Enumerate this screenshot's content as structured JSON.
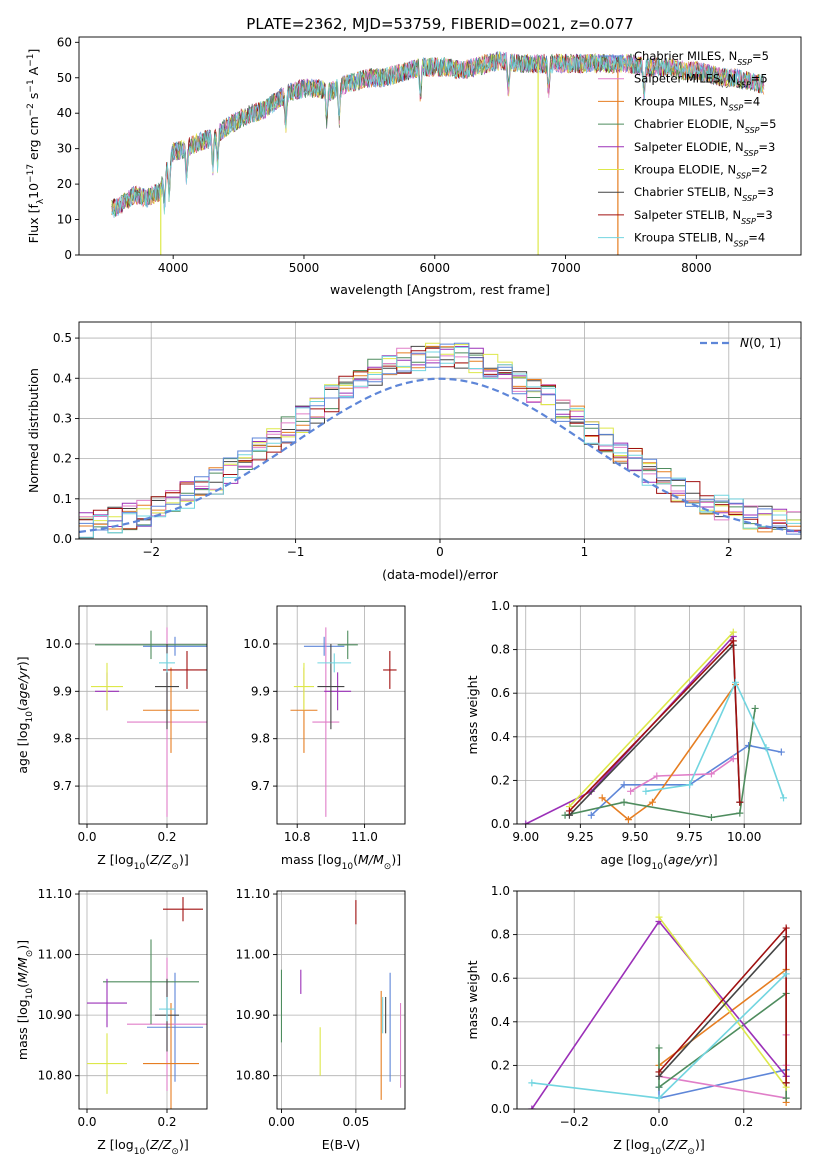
{
  "figure_title": "PLATE=2362, MJD=53759, FIBERID=0021, z=0.077",
  "series_colors": [
    "#5e86d8",
    "#e07ec8",
    "#e67e22",
    "#4e8c5e",
    "#9b30b8",
    "#dde84a",
    "#444444",
    "#a01010",
    "#72d5e0"
  ],
  "legend_entries": [
    {
      "name": "Chabrier MILES",
      "nssp": "5"
    },
    {
      "name": "Salpeter MILES",
      "nssp": "5"
    },
    {
      "name": "Kroupa MILES",
      "nssp": "4"
    },
    {
      "name": "Chabrier ELODIE",
      "nssp": "5"
    },
    {
      "name": "Salpeter ELODIE",
      "nssp": "3"
    },
    {
      "name": "Kroupa ELODIE",
      "nssp": "2"
    },
    {
      "name": "Chabrier STELIB",
      "nssp": "3"
    },
    {
      "name": "Salpeter STELIB",
      "nssp": "3"
    },
    {
      "name": "Kroupa STELIB",
      "nssp": "4"
    }
  ],
  "chart_data": [
    {
      "id": "spectrum",
      "type": "line",
      "xlabel": "wavelength [Angstrom, rest frame]",
      "ylabel": "Flux [f_λ 10^-17 erg cm^-2 s^-1 A^-1]",
      "xlim": [
        3280,
        8800
      ],
      "ylim": [
        0,
        61.5
      ],
      "xticks": [
        4000,
        5000,
        6000,
        7000,
        8000
      ],
      "yticks": [
        0,
        10,
        20,
        30,
        40,
        50,
        60
      ],
      "grid": false,
      "legend": "right",
      "continuum": {
        "x": [
          3530,
          3600,
          3700,
          3800,
          3900,
          3960,
          4000,
          4100,
          4200,
          4300,
          4400,
          4500,
          4600,
          4700,
          4800,
          4900,
          5000,
          5100,
          5200,
          5300,
          5400,
          5500,
          5600,
          5700,
          5800,
          5900,
          6000,
          6100,
          6200,
          6300,
          6400,
          6500,
          6600,
          6700,
          6800,
          6900,
          7000,
          7100,
          7200,
          7300,
          7400,
          7500,
          7600,
          7700,
          7800,
          7900,
          8000,
          8100,
          8200,
          8300,
          8400,
          8520
        ],
        "y": [
          13,
          14,
          17,
          16,
          18,
          25,
          29,
          30,
          32,
          33,
          36,
          38,
          40,
          41,
          44,
          46,
          47,
          47,
          46,
          48,
          49,
          50,
          50,
          51,
          52,
          53,
          53,
          53,
          52,
          53,
          54,
          55,
          54,
          54,
          54,
          54,
          54,
          54,
          54,
          54,
          54,
          54,
          53,
          53,
          53,
          52,
          52,
          51,
          50,
          50,
          49,
          48
        ]
      },
      "masked_lines": [
        {
          "x": 3905,
          "color_index": 5
        },
        {
          "x": 6790,
          "color_index": 5
        },
        {
          "x": 7400,
          "color_index": 2
        }
      ]
    },
    {
      "id": "residuals",
      "type": "histogram",
      "xlabel": "(data-model)/error",
      "ylabel": "Normed distribution",
      "xlim": [
        -2.5,
        2.5
      ],
      "ylim": [
        0,
        0.54
      ],
      "xticks": [
        -2,
        -1,
        0,
        1,
        2
      ],
      "yticks": [
        0.0,
        0.1,
        0.2,
        0.3,
        0.4,
        0.5
      ],
      "bin_width": 0.1,
      "bin_start": -2.5,
      "grid": true,
      "legend": "top-right",
      "reference_label": "N(0,1)"
    },
    {
      "id": "age_vs_Z",
      "type": "errorbar",
      "xlabel": "Z [log10(Z/Z⊙)]",
      "ylabel": "age  [log10(age/yr)]",
      "xlim": [
        -0.02,
        0.3
      ],
      "ylim": [
        9.62,
        10.08
      ],
      "xticks": [
        0.0,
        0.2
      ],
      "yticks": [
        9.7,
        9.8,
        9.9,
        10.0
      ],
      "grid": true,
      "points": [
        {
          "c": 0,
          "x": 0.22,
          "xe": 0.08,
          "y": 9.995,
          "ye": 0.02
        },
        {
          "c": 1,
          "x": 0.2,
          "xe": 0.1,
          "y": 9.835,
          "ye": 0.2
        },
        {
          "c": 2,
          "x": 0.21,
          "xe": 0.07,
          "y": 9.86,
          "ye": 0.09
        },
        {
          "c": 3,
          "x": 0.16,
          "xe": 0.14,
          "y": 9.998,
          "ye": 0.03
        },
        {
          "c": 4,
          "x": 0.05,
          "xe": 0.03,
          "y": 9.9,
          "ye": 0.04
        },
        {
          "c": 5,
          "x": 0.05,
          "xe": 0.04,
          "y": 9.91,
          "ye": 0.05
        },
        {
          "c": 6,
          "x": 0.2,
          "xe": 0.03,
          "y": 9.91,
          "ye": 0.09
        },
        {
          "c": 7,
          "x": 0.25,
          "xe": 0.06,
          "y": 9.945,
          "ye": 0.04
        },
        {
          "c": 8,
          "x": 0.2,
          "xe": 0.02,
          "y": 9.96,
          "ye": 0.02
        }
      ]
    },
    {
      "id": "age_vs_mass",
      "type": "errorbar",
      "xlabel": "mass [log10(M/M⊙)]",
      "ylabel": "",
      "xlim": [
        10.74,
        11.12
      ],
      "ylim": [
        9.62,
        10.08
      ],
      "xticks": [
        10.8,
        11.0
      ],
      "yticks": [
        9.7,
        9.8,
        9.9,
        10.0
      ],
      "grid": true,
      "points": [
        {
          "c": 0,
          "x": 10.88,
          "xe": 0.06,
          "y": 9.995,
          "ye": 0.02
        },
        {
          "c": 1,
          "x": 10.885,
          "xe": 0.04,
          "y": 9.835,
          "ye": 0.2
        },
        {
          "c": 2,
          "x": 10.82,
          "xe": 0.04,
          "y": 9.86,
          "ye": 0.09
        },
        {
          "c": 3,
          "x": 10.95,
          "xe": 0.03,
          "y": 9.998,
          "ye": 0.03
        },
        {
          "c": 4,
          "x": 10.92,
          "xe": 0.04,
          "y": 9.9,
          "ye": 0.04
        },
        {
          "c": 5,
          "x": 10.82,
          "xe": 0.03,
          "y": 9.91,
          "ye": 0.05
        },
        {
          "c": 6,
          "x": 10.9,
          "xe": 0.04,
          "y": 9.91,
          "ye": 0.09
        },
        {
          "c": 7,
          "x": 11.075,
          "xe": 0.02,
          "y": 9.945,
          "ye": 0.04
        },
        {
          "c": 8,
          "x": 10.91,
          "xe": 0.05,
          "y": 9.96,
          "ye": 0.02
        }
      ]
    },
    {
      "id": "weight_vs_age",
      "type": "line",
      "xlabel": "age  [log10(age/yr)]",
      "ylabel": "mass weight",
      "xlim": [
        8.96,
        10.26
      ],
      "ylim": [
        0,
        1.0
      ],
      "xticks": [
        9.0,
        9.25,
        9.5,
        9.75,
        10.0
      ],
      "yticks": [
        0.0,
        0.2,
        0.4,
        0.6,
        0.8,
        1.0
      ],
      "grid": true,
      "series": [
        {
          "c": 0,
          "x": [
            9.3,
            9.45,
            9.75,
            10.02,
            10.17
          ],
          "y": [
            0.04,
            0.18,
            0.18,
            0.36,
            0.33
          ]
        },
        {
          "c": 1,
          "x": [
            9.48,
            9.6,
            9.85,
            9.95,
            9.95
          ],
          "y": [
            0.15,
            0.22,
            0.23,
            0.3,
            0.3
          ]
        },
        {
          "c": 2,
          "x": [
            9.35,
            9.47,
            9.58,
            9.96
          ],
          "y": [
            0.12,
            0.02,
            0.1,
            0.64
          ]
        },
        {
          "c": 3,
          "x": [
            9.18,
            9.45,
            9.85,
            9.98,
            10.05
          ],
          "y": [
            0.04,
            0.1,
            0.03,
            0.05,
            0.53
          ]
        },
        {
          "c": 4,
          "x": [
            9.0,
            9.3,
            9.95
          ],
          "y": [
            0.0,
            0.15,
            0.86
          ]
        },
        {
          "c": 5,
          "x": [
            9.2,
            9.95
          ],
          "y": [
            0.08,
            0.88
          ]
        },
        {
          "c": 6,
          "x": [
            9.2,
            9.95,
            9.98
          ],
          "y": [
            0.04,
            0.82,
            0.1
          ]
        },
        {
          "c": 7,
          "x": [
            9.2,
            9.95,
            9.98
          ],
          "y": [
            0.06,
            0.84,
            0.1
          ]
        },
        {
          "c": 8,
          "x": [
            9.55,
            9.75,
            9.96,
            10.1,
            10.18
          ],
          "y": [
            0.15,
            0.18,
            0.65,
            0.35,
            0.12
          ]
        }
      ]
    },
    {
      "id": "mass_vs_Z",
      "type": "errorbar",
      "xlabel": "Z [log10(Z/Z⊙)]",
      "ylabel": "mass [log10(M/M⊙)]",
      "xlim": [
        -0.02,
        0.3
      ],
      "ylim": [
        10.745,
        11.105
      ],
      "xticks": [
        0.0,
        0.2
      ],
      "yticks": [
        10.8,
        10.9,
        11.0,
        11.1
      ],
      "grid": true,
      "points": [
        {
          "c": 0,
          "x": 0.22,
          "xe": 0.07,
          "y": 10.88,
          "ye": 0.09
        },
        {
          "c": 1,
          "x": 0.2,
          "xe": 0.1,
          "y": 10.885,
          "ye": 0.11
        },
        {
          "c": 2,
          "x": 0.21,
          "xe": 0.07,
          "y": 10.82,
          "ye": 0.1
        },
        {
          "c": 3,
          "x": 0.16,
          "xe": 0.12,
          "y": 10.955,
          "ye": 0.07
        },
        {
          "c": 4,
          "x": 0.05,
          "xe": 0.05,
          "y": 10.92,
          "ye": 0.04
        },
        {
          "c": 5,
          "x": 0.05,
          "xe": 0.05,
          "y": 10.82,
          "ye": 0.05
        },
        {
          "c": 6,
          "x": 0.2,
          "xe": 0.03,
          "y": 10.9,
          "ye": 0.06
        },
        {
          "c": 7,
          "x": 0.24,
          "xe": 0.05,
          "y": 11.075,
          "ye": 0.02
        },
        {
          "c": 8,
          "x": 0.2,
          "xe": 0.02,
          "y": 10.91,
          "ye": 0.02
        }
      ]
    },
    {
      "id": "mass_vs_EBV",
      "type": "errorbar",
      "xlabel": "E(B-V)",
      "ylabel": "",
      "xlim": [
        -0.003,
        0.083
      ],
      "ylim": [
        10.745,
        11.105
      ],
      "xticks": [
        0.0,
        0.05
      ],
      "yticks": [
        10.8,
        10.9,
        11.0,
        11.1
      ],
      "grid": true,
      "points": [
        {
          "c": 0,
          "x": 0.073,
          "xe": 0,
          "y": 10.88,
          "ye": 0.09
        },
        {
          "c": 1,
          "x": 0.08,
          "xe": 0,
          "y": 10.85,
          "ye": 0.07
        },
        {
          "c": 2,
          "x": 0.067,
          "xe": 0,
          "y": 10.85,
          "ye": 0.09
        },
        {
          "c": 3,
          "x": 0.0,
          "xe": 0,
          "y": 10.915,
          "ye": 0.06
        },
        {
          "c": 4,
          "x": 0.013,
          "xe": 0,
          "y": 10.955,
          "ye": 0.02
        },
        {
          "c": 5,
          "x": 0.026,
          "xe": 0,
          "y": 10.84,
          "ye": 0.04
        },
        {
          "c": 6,
          "x": 0.07,
          "xe": 0,
          "y": 10.9,
          "ye": 0.03
        },
        {
          "c": 7,
          "x": 0.05,
          "xe": 0,
          "y": 11.07,
          "ye": 0.02
        },
        {
          "c": 8,
          "x": 0.068,
          "xe": 0,
          "y": 10.9,
          "ye": 0.03
        }
      ]
    },
    {
      "id": "weight_vs_Z",
      "type": "line",
      "xlabel": "Z [log10(Z/Z⊙)]",
      "ylabel": "mass weight",
      "xlim": [
        -0.335,
        0.335
      ],
      "ylim": [
        0,
        1.0
      ],
      "xticks": [
        -0.2,
        0.0,
        0.2
      ],
      "yticks": [
        0.0,
        0.2,
        0.4,
        0.6,
        0.8,
        1.0
      ],
      "grid": true,
      "series": [
        {
          "c": 0,
          "x": [
            0.0,
            0.0,
            0.3,
            0.3
          ],
          "y": [
            0.1,
            0.05,
            0.18,
            0.15
          ]
        },
        {
          "c": 1,
          "x": [
            0.0,
            0.3,
            0.3,
            0.3
          ],
          "y": [
            0.15,
            0.05,
            0.34,
            0.2
          ]
        },
        {
          "c": 2,
          "x": [
            0.0,
            0.3,
            0.3
          ],
          "y": [
            0.2,
            0.64,
            0.03
          ]
        },
        {
          "c": 3,
          "x": [
            0.0,
            0.0,
            0.3,
            0.3
          ],
          "y": [
            0.28,
            0.1,
            0.53,
            0.05
          ]
        },
        {
          "c": 4,
          "x": [
            -0.3,
            0.0,
            0.3
          ],
          "y": [
            0.0,
            0.86,
            0.15
          ]
        },
        {
          "c": 5,
          "x": [
            0.0,
            0.3
          ],
          "y": [
            0.88,
            0.1
          ]
        },
        {
          "c": 6,
          "x": [
            0.0,
            0.3,
            0.3
          ],
          "y": [
            0.15,
            0.79,
            0.12
          ]
        },
        {
          "c": 7,
          "x": [
            0.0,
            0.3,
            0.3
          ],
          "y": [
            0.17,
            0.83,
            0.12
          ]
        },
        {
          "c": 8,
          "x": [
            -0.3,
            0.0,
            0.3
          ],
          "y": [
            0.12,
            0.05,
            0.62
          ]
        }
      ]
    }
  ]
}
